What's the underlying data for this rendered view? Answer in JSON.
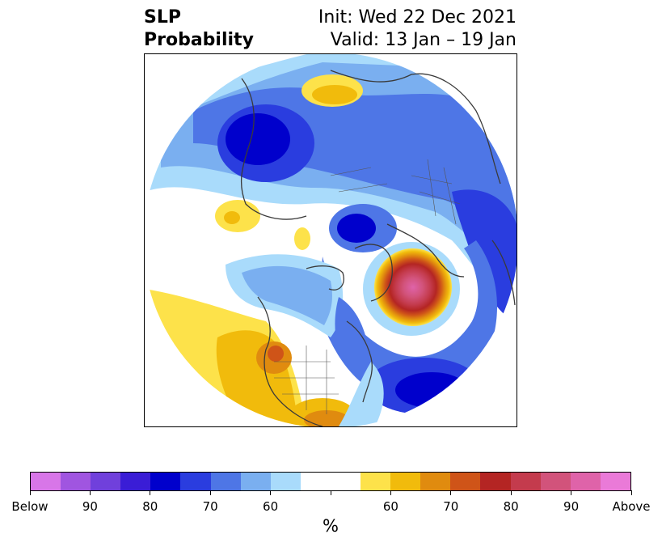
{
  "header": {
    "variable": "SLP",
    "product": "Probability",
    "init": "Init: Wed 22 Dec 2021",
    "valid": "Valid: 13 Jan – 19 Jan"
  },
  "map": {
    "projection": "north-polar stereographic",
    "region": "Northern Hemisphere",
    "features": [
      "coastlines",
      "country borders",
      "US state borders"
    ]
  },
  "colorbar": {
    "unit": "%",
    "colors": [
      "#d876e8",
      "#a055e0",
      "#7040dc",
      "#3a1dd6",
      "#0000cc",
      "#2a3ddf",
      "#4e76e6",
      "#7aaff0",
      "#a9dbfb",
      "#ffffff",
      "#ffffff",
      "#fde24a",
      "#f1bb0c",
      "#e08b0f",
      "#cf5418",
      "#b42523",
      "#c43b4d",
      "#d2537b",
      "#df63a9",
      "#ea7ad8"
    ],
    "tick_labels": [
      "Below",
      "90",
      "80",
      "70",
      "60",
      "",
      "60",
      "70",
      "80",
      "90",
      "Above"
    ]
  }
}
